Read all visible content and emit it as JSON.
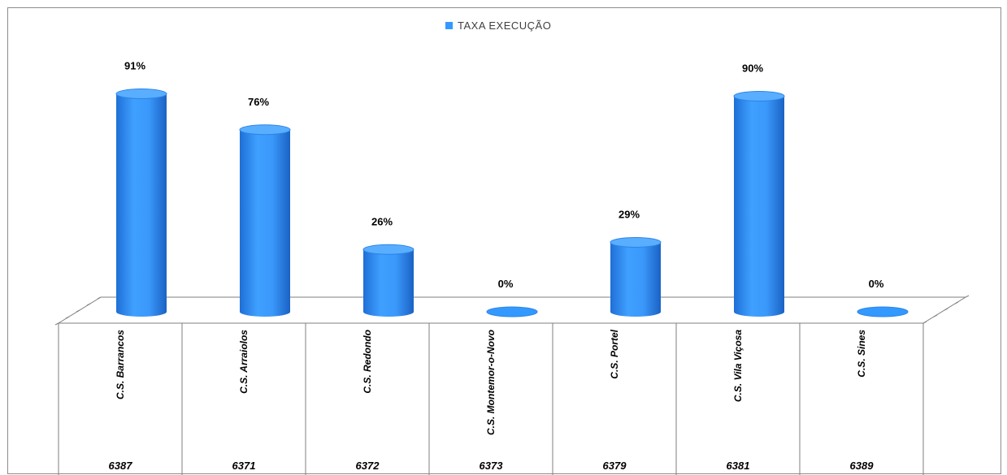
{
  "chart_data": {
    "type": "bar",
    "style": "3d-cylinder",
    "legend": {
      "label": "TAXA EXECUÇÃO",
      "position": "top"
    },
    "categories": [
      "C.S. Barrancos",
      "C.S. Arraiolos",
      "C.S. Redondo",
      "C.S. Montemor-o-Novo",
      "C.S. Portel",
      "C.S. Vila Viçosa",
      "C.S. Sines"
    ],
    "codes": [
      "6387",
      "6371",
      "6372",
      "6373",
      "6379",
      "6381",
      "6389"
    ],
    "series": [
      {
        "name": "TAXA EXECUÇÃO",
        "values": [
          91,
          76,
          26,
          0,
          29,
          90,
          0
        ],
        "value_labels": [
          "91%",
          "76%",
          "26%",
          "0%",
          "29%",
          "90%",
          "0%"
        ]
      }
    ],
    "ylim": [
      0,
      100
    ],
    "grid": false,
    "colors": {
      "bar": "#3399ff",
      "bar_dark": "#1f6fd6",
      "bar_top": "#5aaeff",
      "axis": "#7f7f7f"
    }
  }
}
